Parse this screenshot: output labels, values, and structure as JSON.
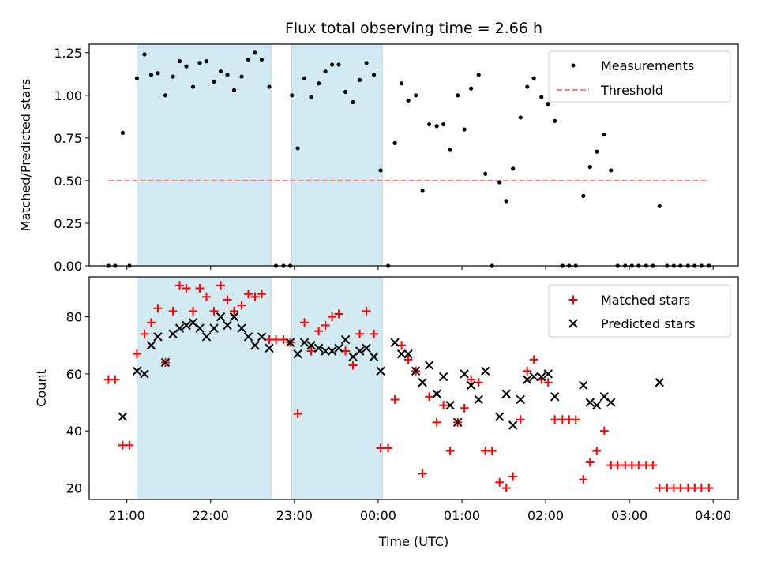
{
  "title": "Flux total observing time = 2.66 h",
  "colors": {
    "shade": "#add8e6",
    "measurement": "#000000",
    "threshold": "#ff7f7f",
    "matched": "#ff0000",
    "predicted": "#000000"
  },
  "chart_data": [
    {
      "type": "scatter",
      "ylabel": "Matched/Predicted stars",
      "ylim": [
        0,
        1.3
      ],
      "yticks": [
        "0.00",
        "0.25",
        "0.50",
        "0.75",
        "1.00",
        "1.25"
      ],
      "ytick_values": [
        0,
        0.25,
        0.5,
        0.75,
        1.0,
        1.25
      ],
      "xlim_hours": [
        20.55,
        28.3
      ],
      "x_unit": "hours UTC since 00:00 of the first night",
      "shaded_intervals": [
        [
          21.12,
          22.72
        ],
        [
          22.97,
          24.05
        ]
      ],
      "legend": {
        "placement": "top-right",
        "entries": [
          "Measurements",
          "Threshold"
        ]
      },
      "threshold": {
        "name": "Threshold",
        "value": 0.5,
        "x_range": [
          20.78,
          27.95
        ]
      },
      "series": [
        {
          "name": "Measurements",
          "points": [
            [
              20.78,
              0
            ],
            [
              20.86,
              0
            ],
            [
              20.95,
              0.78
            ],
            [
              21.03,
              0
            ],
            [
              21.12,
              1.1
            ],
            [
              21.21,
              1.24
            ],
            [
              21.29,
              1.12
            ],
            [
              21.37,
              1.13
            ],
            [
              21.46,
              1.0
            ],
            [
              21.55,
              1.11
            ],
            [
              21.63,
              1.2
            ],
            [
              21.71,
              1.17
            ],
            [
              21.79,
              1.05
            ],
            [
              21.87,
              1.19
            ],
            [
              21.95,
              1.2
            ],
            [
              22.04,
              1.08
            ],
            [
              22.12,
              1.14
            ],
            [
              22.2,
              1.12
            ],
            [
              22.28,
              1.03
            ],
            [
              22.37,
              1.11
            ],
            [
              22.45,
              1.21
            ],
            [
              22.53,
              1.25
            ],
            [
              22.61,
              1.21
            ],
            [
              22.7,
              1.05
            ],
            [
              22.78,
              0
            ],
            [
              22.87,
              0
            ],
            [
              22.95,
              0
            ],
            [
              22.97,
              1.0
            ],
            [
              23.04,
              0.69
            ],
            [
              23.12,
              1.1
            ],
            [
              23.2,
              0.99
            ],
            [
              23.29,
              1.07
            ],
            [
              23.37,
              1.14
            ],
            [
              23.45,
              1.18
            ],
            [
              23.53,
              1.18
            ],
            [
              23.61,
              1.02
            ],
            [
              23.7,
              0.96
            ],
            [
              23.78,
              1.09
            ],
            [
              23.86,
              1.19
            ],
            [
              23.95,
              1.12
            ],
            [
              24.03,
              0.56
            ],
            [
              24.12,
              0
            ],
            [
              24.2,
              0.72
            ],
            [
              24.28,
              1.07
            ],
            [
              24.36,
              0.97
            ],
            [
              24.45,
              1.0
            ],
            [
              24.53,
              0.44
            ],
            [
              24.61,
              0.83
            ],
            [
              24.7,
              0.82
            ],
            [
              24.78,
              0.83
            ],
            [
              24.86,
              0.68
            ],
            [
              24.95,
              1.0
            ],
            [
              25.03,
              0.8
            ],
            [
              25.11,
              1.04
            ],
            [
              25.2,
              1.12
            ],
            [
              25.28,
              0.54
            ],
            [
              25.36,
              0
            ],
            [
              25.45,
              0.49
            ],
            [
              25.53,
              0.38
            ],
            [
              25.61,
              0.57
            ],
            [
              25.7,
              0.87
            ],
            [
              25.78,
              1.05
            ],
            [
              25.86,
              1.1
            ],
            [
              25.95,
              0.99
            ],
            [
              26.03,
              0.95
            ],
            [
              26.11,
              0.85
            ],
            [
              26.2,
              0
            ],
            [
              26.28,
              0
            ],
            [
              26.36,
              0
            ],
            [
              26.45,
              0.41
            ],
            [
              26.53,
              0.58
            ],
            [
              26.61,
              0.67
            ],
            [
              26.7,
              0.77
            ],
            [
              26.78,
              0.56
            ],
            [
              26.86,
              0
            ],
            [
              26.95,
              0
            ],
            [
              27.03,
              0
            ],
            [
              27.11,
              0
            ],
            [
              27.2,
              0
            ],
            [
              27.28,
              0
            ],
            [
              27.36,
              0.35
            ],
            [
              27.45,
              0
            ],
            [
              27.53,
              0
            ],
            [
              27.61,
              0
            ],
            [
              27.7,
              0
            ],
            [
              27.78,
              0
            ],
            [
              27.86,
              0
            ],
            [
              27.95,
              0
            ]
          ]
        }
      ]
    },
    {
      "type": "scatter",
      "ylabel": "Count",
      "xlabel": "Time (UTC)",
      "ylim": [
        16,
        94
      ],
      "yticks": [
        "20",
        "40",
        "60",
        "80"
      ],
      "ytick_values": [
        20,
        40,
        60,
        80
      ],
      "xlim_hours": [
        20.55,
        28.3
      ],
      "xticks": [
        "21:00",
        "22:00",
        "23:00",
        "00:00",
        "01:00",
        "02:00",
        "03:00",
        "04:00"
      ],
      "xtick_values": [
        21,
        22,
        23,
        24,
        25,
        26,
        27,
        28
      ],
      "shaded_intervals": [
        [
          21.12,
          22.72
        ],
        [
          22.97,
          24.05
        ]
      ],
      "legend": {
        "placement": "top-right",
        "entries": [
          "Matched stars",
          "Predicted stars"
        ]
      },
      "series": [
        {
          "name": "Matched stars",
          "points": [
            [
              20.78,
              58
            ],
            [
              20.86,
              58
            ],
            [
              20.95,
              35
            ],
            [
              21.03,
              35
            ],
            [
              21.12,
              67
            ],
            [
              21.21,
              74
            ],
            [
              21.29,
              78
            ],
            [
              21.37,
              83
            ],
            [
              21.46,
              64
            ],
            [
              21.55,
              82
            ],
            [
              21.63,
              91
            ],
            [
              21.71,
              90
            ],
            [
              21.79,
              82
            ],
            [
              21.87,
              90
            ],
            [
              21.95,
              87
            ],
            [
              22.04,
              82
            ],
            [
              22.12,
              91
            ],
            [
              22.2,
              86
            ],
            [
              22.28,
              82
            ],
            [
              22.37,
              84
            ],
            [
              22.45,
              88
            ],
            [
              22.53,
              87
            ],
            [
              22.61,
              88
            ],
            [
              22.7,
              72
            ],
            [
              22.78,
              72
            ],
            [
              22.87,
              72
            ],
            [
              22.95,
              71
            ],
            [
              23.04,
              46
            ],
            [
              23.12,
              78
            ],
            [
              23.2,
              68
            ],
            [
              23.29,
              75
            ],
            [
              23.37,
              77
            ],
            [
              23.45,
              80
            ],
            [
              23.53,
              81
            ],
            [
              23.61,
              68
            ],
            [
              23.7,
              63
            ],
            [
              23.78,
              74
            ],
            [
              23.86,
              82
            ],
            [
              23.95,
              74
            ],
            [
              24.03,
              34
            ],
            [
              24.12,
              34
            ],
            [
              24.2,
              51
            ],
            [
              24.28,
              70
            ],
            [
              24.36,
              65
            ],
            [
              24.45,
              61
            ],
            [
              24.53,
              25
            ],
            [
              24.61,
              52
            ],
            [
              24.7,
              43
            ],
            [
              24.78,
              49
            ],
            [
              24.86,
              33
            ],
            [
              24.95,
              43
            ],
            [
              25.03,
              48
            ],
            [
              25.11,
              58
            ],
            [
              25.2,
              57
            ],
            [
              25.28,
              33
            ],
            [
              25.36,
              33
            ],
            [
              25.45,
              22
            ],
            [
              25.53,
              20
            ],
            [
              25.61,
              24
            ],
            [
              25.7,
              44
            ],
            [
              25.78,
              61
            ],
            [
              25.86,
              65
            ],
            [
              25.95,
              58
            ],
            [
              26.03,
              57
            ],
            [
              26.11,
              44
            ],
            [
              26.2,
              44
            ],
            [
              26.28,
              44
            ],
            [
              26.36,
              44
            ],
            [
              26.45,
              23
            ],
            [
              26.53,
              29
            ],
            [
              26.61,
              33
            ],
            [
              26.7,
              40
            ],
            [
              26.78,
              28
            ],
            [
              26.86,
              28
            ],
            [
              26.95,
              28
            ],
            [
              27.03,
              28
            ],
            [
              27.11,
              28
            ],
            [
              27.2,
              28
            ],
            [
              27.28,
              28
            ],
            [
              27.36,
              20
            ],
            [
              27.45,
              20
            ],
            [
              27.53,
              20
            ],
            [
              27.61,
              20
            ],
            [
              27.7,
              20
            ],
            [
              27.78,
              20
            ],
            [
              27.86,
              20
            ],
            [
              27.95,
              20
            ]
          ]
        },
        {
          "name": "Predicted stars",
          "points": [
            [
              20.95,
              45
            ],
            [
              21.12,
              61
            ],
            [
              21.21,
              60
            ],
            [
              21.29,
              70
            ],
            [
              21.37,
              73
            ],
            [
              21.46,
              64
            ],
            [
              21.55,
              74
            ],
            [
              21.63,
              76
            ],
            [
              21.71,
              77
            ],
            [
              21.79,
              78
            ],
            [
              21.87,
              76
            ],
            [
              21.95,
              73
            ],
            [
              22.04,
              76
            ],
            [
              22.12,
              80
            ],
            [
              22.2,
              77
            ],
            [
              22.28,
              80
            ],
            [
              22.37,
              76
            ],
            [
              22.45,
              73
            ],
            [
              22.53,
              70
            ],
            [
              22.61,
              73
            ],
            [
              22.7,
              69
            ],
            [
              22.95,
              71
            ],
            [
              23.04,
              67
            ],
            [
              23.12,
              71
            ],
            [
              23.2,
              70
            ],
            [
              23.29,
              69
            ],
            [
              23.37,
              68
            ],
            [
              23.45,
              68
            ],
            [
              23.53,
              69
            ],
            [
              23.61,
              72
            ],
            [
              23.7,
              66
            ],
            [
              23.78,
              68
            ],
            [
              23.86,
              69
            ],
            [
              23.95,
              66
            ],
            [
              24.03,
              61
            ],
            [
              24.2,
              71
            ],
            [
              24.28,
              67
            ],
            [
              24.36,
              67
            ],
            [
              24.45,
              61
            ],
            [
              24.53,
              57
            ],
            [
              24.61,
              63
            ],
            [
              24.7,
              53
            ],
            [
              24.78,
              59
            ],
            [
              24.86,
              49
            ],
            [
              24.95,
              43
            ],
            [
              25.03,
              60
            ],
            [
              25.11,
              56
            ],
            [
              25.2,
              51
            ],
            [
              25.28,
              61
            ],
            [
              25.45,
              45
            ],
            [
              25.53,
              53
            ],
            [
              25.61,
              42
            ],
            [
              25.7,
              51
            ],
            [
              25.78,
              58
            ],
            [
              25.86,
              59
            ],
            [
              25.95,
              59
            ],
            [
              26.03,
              60
            ],
            [
              26.11,
              52
            ],
            [
              26.45,
              56
            ],
            [
              26.53,
              50
            ],
            [
              26.61,
              49
            ],
            [
              26.7,
              52
            ],
            [
              26.78,
              50
            ],
            [
              27.36,
              57
            ]
          ]
        }
      ]
    }
  ]
}
